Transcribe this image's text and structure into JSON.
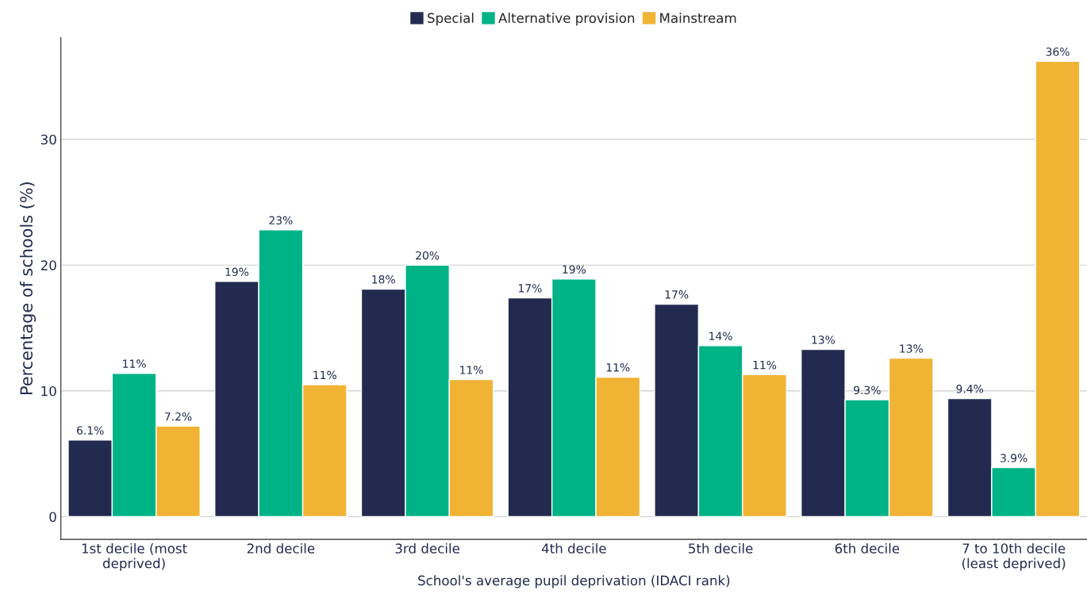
{
  "chart_data": {
    "type": "bar",
    "xlabel": "School's average pupil deprivation (IDACI rank)",
    "ylabel": "Percentage of schools (%)",
    "categories": [
      "1st decile (most\ndeprived)",
      "2nd decile",
      "3rd decile",
      "4th decile",
      "5th decile",
      "6th decile",
      "7 to 10th decile\n(least deprived)"
    ],
    "series": [
      {
        "name": "Special",
        "color": "#222b4f",
        "values": [
          6.1,
          18.7,
          18.1,
          17.4,
          16.9,
          13.3,
          9.4
        ],
        "value_labels": [
          "6.1%",
          "19%",
          "18%",
          "17%",
          "17%",
          "13%",
          "9.4%"
        ]
      },
      {
        "name": "Alternative provision",
        "color": "#00b386",
        "values": [
          11.4,
          22.8,
          20.0,
          18.9,
          13.6,
          9.3,
          3.9
        ],
        "value_labels": [
          "11%",
          "23%",
          "20%",
          "19%",
          "14%",
          "9.3%",
          "3.9%"
        ]
      },
      {
        "name": "Mainstream",
        "color": "#f0b334",
        "values": [
          7.2,
          10.5,
          10.9,
          11.1,
          11.3,
          12.6,
          36.2
        ],
        "value_labels": [
          "7.2%",
          "11%",
          "11%",
          "11%",
          "11%",
          "13%",
          "36%"
        ]
      }
    ],
    "ylim": [
      -1.8,
      38.1
    ],
    "yticks": [
      0,
      10,
      20,
      30
    ],
    "grid": "y",
    "legend": "top"
  }
}
